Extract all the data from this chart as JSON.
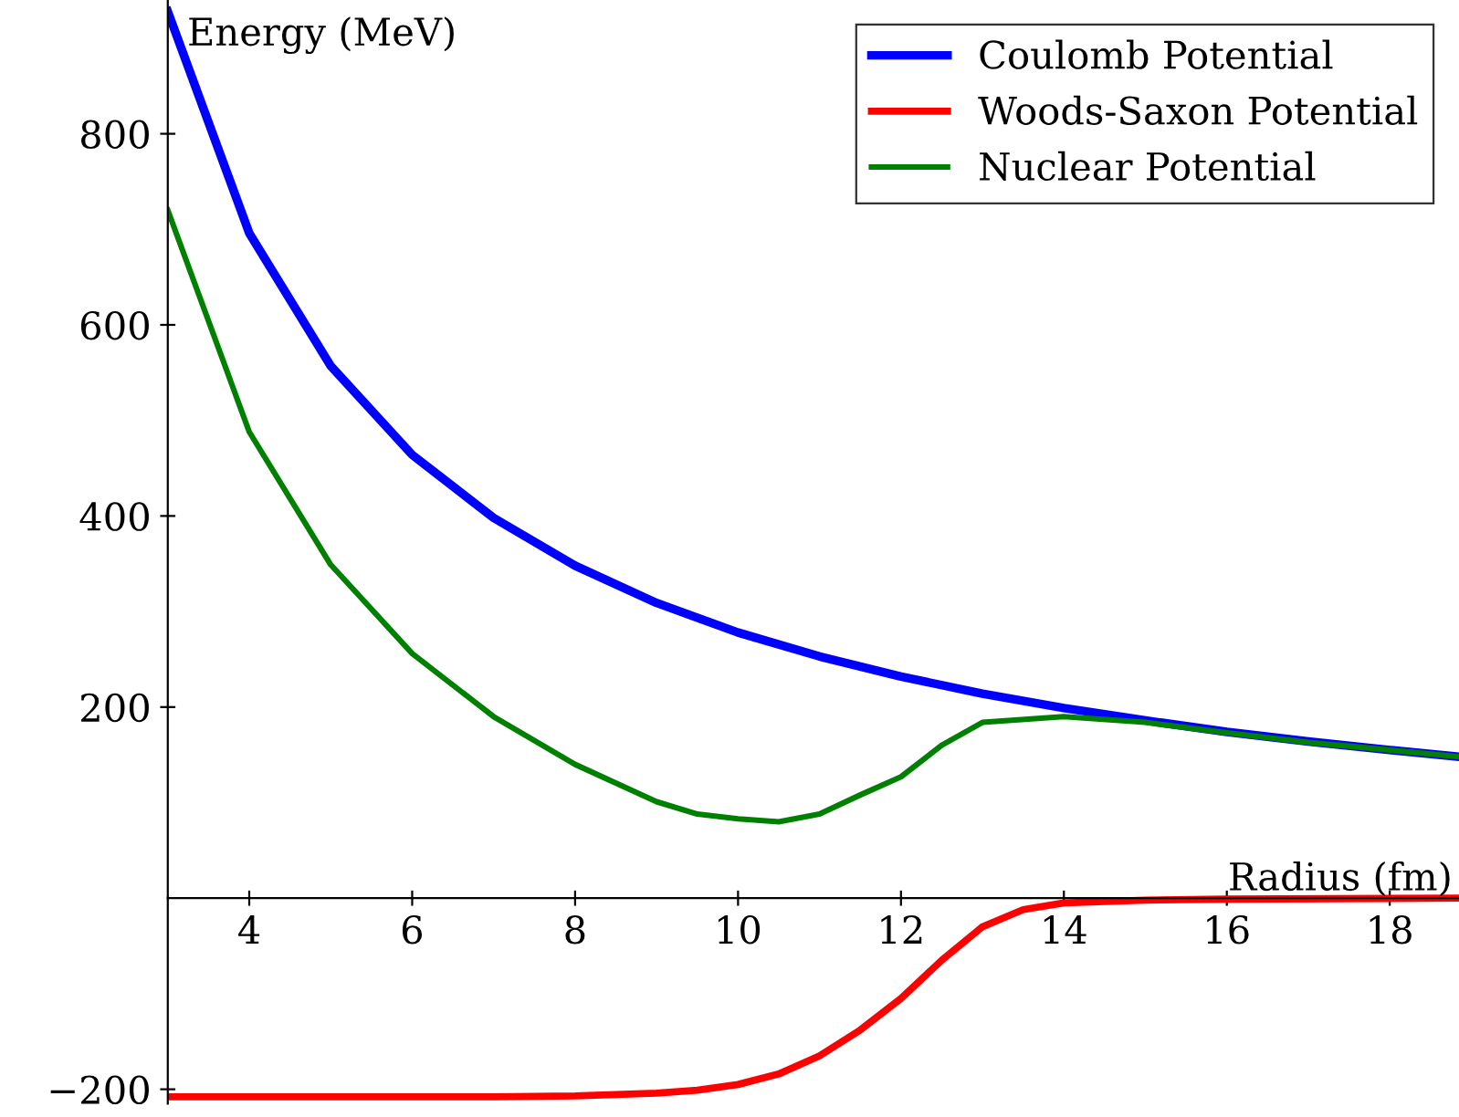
{
  "chart_data": {
    "type": "line",
    "xlabel": "Radius (fm)",
    "ylabel": "Energy (MeV)",
    "xlim": [
      3,
      18.85
    ],
    "ylim": [
      -215,
      940
    ],
    "xticks": [
      4,
      6,
      8,
      10,
      12,
      14,
      16,
      18
    ],
    "yticks": [
      {
        "value": -200,
        "label": "−200"
      },
      200,
      400,
      600,
      800
    ],
    "grid": false,
    "legend": "top right",
    "marker": "none",
    "line_style": "solid",
    "series": [
      {
        "name": "Coulomb Potential",
        "color": "#0000ff",
        "x": [
          3,
          4,
          5,
          6,
          7,
          8,
          9,
          10,
          11,
          12,
          13,
          14,
          15,
          16,
          17,
          18,
          18.85
        ],
        "values": [
          928,
          696,
          557,
          464,
          398,
          348,
          309,
          278,
          253,
          232,
          214,
          199,
          186,
          174,
          164,
          155,
          148
        ]
      },
      {
        "name": "Woods-Saxon Potential",
        "color": "#ff0000",
        "x": [
          3,
          5,
          7,
          8,
          9,
          9.5,
          10,
          10.5,
          11,
          11.5,
          12,
          12.5,
          13,
          13.5,
          14,
          15,
          16,
          18.85
        ],
        "values": [
          -208,
          -208,
          -208,
          -207,
          -204,
          -201,
          -195,
          -184,
          -165,
          -138,
          -105,
          -65,
          -30,
          -12,
          -5,
          -2,
          -1,
          0
        ]
      },
      {
        "name": "Nuclear Potential",
        "color": "#008000",
        "x": [
          3,
          4,
          5,
          6,
          7,
          8,
          9,
          9.5,
          10,
          10.5,
          11,
          11.5,
          12,
          12.5,
          13,
          14,
          15,
          16,
          17,
          18,
          18.85
        ],
        "values": [
          720,
          488,
          349,
          256,
          190,
          140,
          101,
          88,
          83,
          80,
          88,
          108,
          127,
          160,
          184,
          190,
          184,
          173,
          163,
          155,
          148
        ]
      }
    ]
  }
}
